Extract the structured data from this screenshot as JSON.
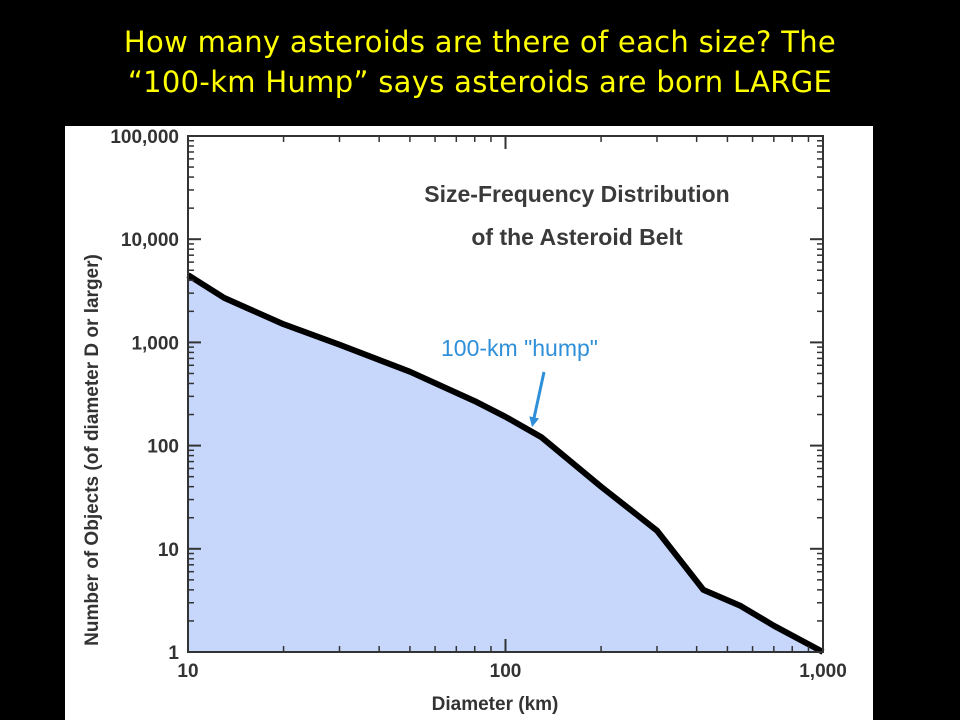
{
  "slide": {
    "title_line1": "How many asteroids are there of each size? The",
    "title_line2": "“100-km Hump” says asteroids are born LARGE",
    "title_color": "#ffff00",
    "background": "#000000"
  },
  "chart_data": {
    "type": "area",
    "title_line1": "Size-Frequency Distribution",
    "title_line2": "of the Asteroid Belt",
    "xlabel": "Diameter (km)",
    "ylabel": "Number of Objects (of diameter D or larger)",
    "x_scale": "log",
    "y_scale": "log",
    "xlim": [
      10,
      1000
    ],
    "ylim": [
      1,
      100000
    ],
    "x_ticks": [
      10,
      100,
      1000
    ],
    "x_tick_labels": [
      "10",
      "100",
      "1,000"
    ],
    "y_ticks": [
      1,
      10,
      100,
      1000,
      10000,
      100000
    ],
    "y_tick_labels": [
      "1",
      "10",
      "100",
      "1,000",
      "10,000",
      "100,000"
    ],
    "grid": false,
    "fill_color": "#c6d7fb",
    "line_color": "#000000",
    "series": [
      {
        "x": [
          10,
          13,
          20,
          30,
          50,
          80,
          100,
          130,
          200,
          300,
          420,
          550,
          700,
          1000
        ],
        "y": [
          4500,
          2700,
          1500,
          950,
          520,
          270,
          190,
          120,
          40,
          15,
          4,
          2.8,
          1.8,
          1
        ]
      }
    ],
    "annotation": {
      "text": "100-km \"hump\"",
      "color": "#2f8fd8",
      "points_to": [
        122,
        165
      ]
    }
  }
}
